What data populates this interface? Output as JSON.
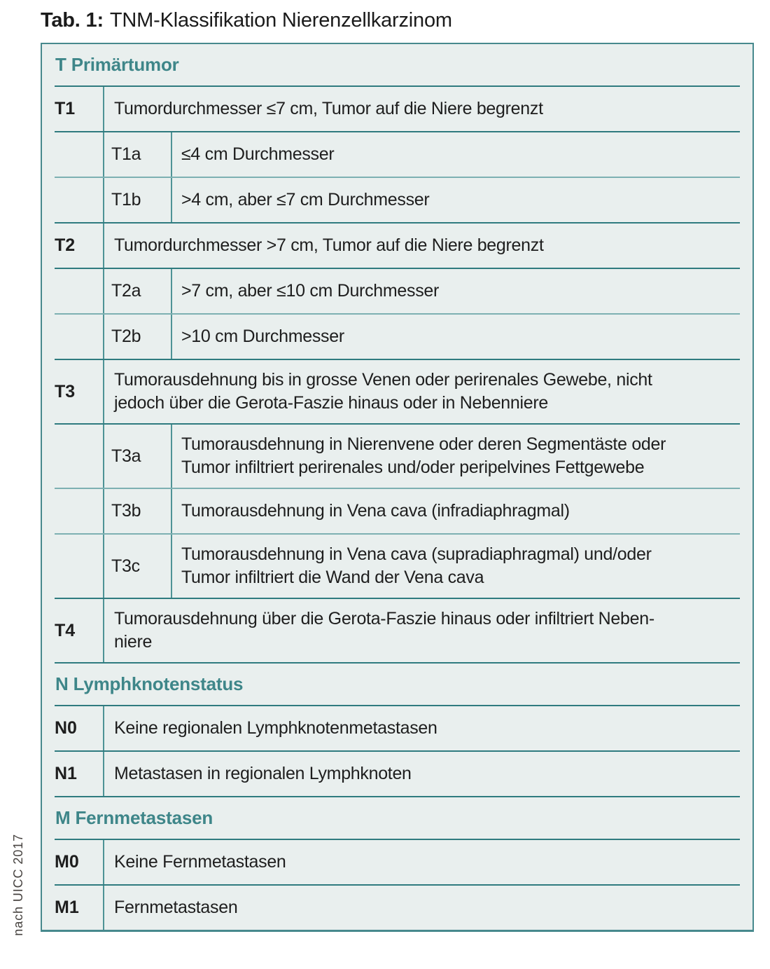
{
  "title": {
    "label": "Tab. 1:",
    "text": "TNM-Klassifikation Nierenzellkarzinom"
  },
  "source_note": "nach UICC 2017",
  "colors": {
    "accent_teal": "#3e8689",
    "table_border": "#47898d",
    "table_background": "#e9efee",
    "line_dark": "#2f7b7f",
    "line_light": "#7db0b2",
    "divider": "#4e9396",
    "text": "#1e1e1e",
    "caption_text": "#474340"
  },
  "table": {
    "sections": [
      {
        "header": "T Primärtumor",
        "rows": [
          {
            "code": "T1",
            "type": "main",
            "lines": [
              "Tumordurchmesser ≤7 cm, Tumor auf die Niere begrenzt"
            ]
          },
          {
            "code": "T1a",
            "type": "sub",
            "lines": [
              "≤4 cm Durchmesser"
            ]
          },
          {
            "code": "T1b",
            "type": "sub",
            "lines": [
              ">4 cm, aber ≤7 cm Durchmesser"
            ]
          },
          {
            "code": "T2",
            "type": "main",
            "lines": [
              "Tumordurchmesser >7 cm, Tumor auf die Niere begrenzt"
            ]
          },
          {
            "code": "T2a",
            "type": "sub",
            "lines": [
              ">7 cm, aber ≤10 cm Durchmesser"
            ]
          },
          {
            "code": "T2b",
            "type": "sub",
            "lines": [
              ">10 cm Durchmesser"
            ]
          },
          {
            "code": "T3",
            "type": "main",
            "lines": [
              "Tumorausdehnung bis in grosse Venen oder perirenales Gewebe, nicht",
              "jedoch über die Gerota-Faszie hinaus oder in Nebenniere"
            ]
          },
          {
            "code": "T3a",
            "type": "sub",
            "lines": [
              "Tumorausdehnung in Nierenvene oder deren Segmentäste oder",
              "Tumor infiltriert perirenales und/oder peripelvines Fettgewebe"
            ]
          },
          {
            "code": "T3b",
            "type": "sub",
            "lines": [
              "Tumorausdehnung in Vena cava (infradiaphragmal)"
            ]
          },
          {
            "code": "T3c",
            "type": "sub",
            "lines": [
              "Tumorausdehnung in Vena cava (supradiaphragmal) und/oder",
              "Tumor infiltriert die Wand der Vena cava"
            ]
          },
          {
            "code": "T4",
            "type": "main",
            "lines": [
              "Tumorausdehnung über die Gerota-Faszie hinaus oder infiltriert Neben-",
              "niere"
            ]
          }
        ]
      },
      {
        "header": "N Lymphknotenstatus",
        "rows": [
          {
            "code": "N0",
            "type": "main",
            "lines": [
              "Keine regionalen Lymphknotenmetastasen"
            ]
          },
          {
            "code": "N1",
            "type": "main",
            "lines": [
              "Metastasen in regionalen Lymphknoten"
            ]
          }
        ]
      },
      {
        "header": "M Fernmetastasen",
        "rows": [
          {
            "code": "M0",
            "type": "main",
            "lines": [
              "Keine Fernmetastasen"
            ]
          },
          {
            "code": "M1",
            "type": "main",
            "lines": [
              "Fernmetastasen"
            ]
          }
        ]
      }
    ]
  }
}
